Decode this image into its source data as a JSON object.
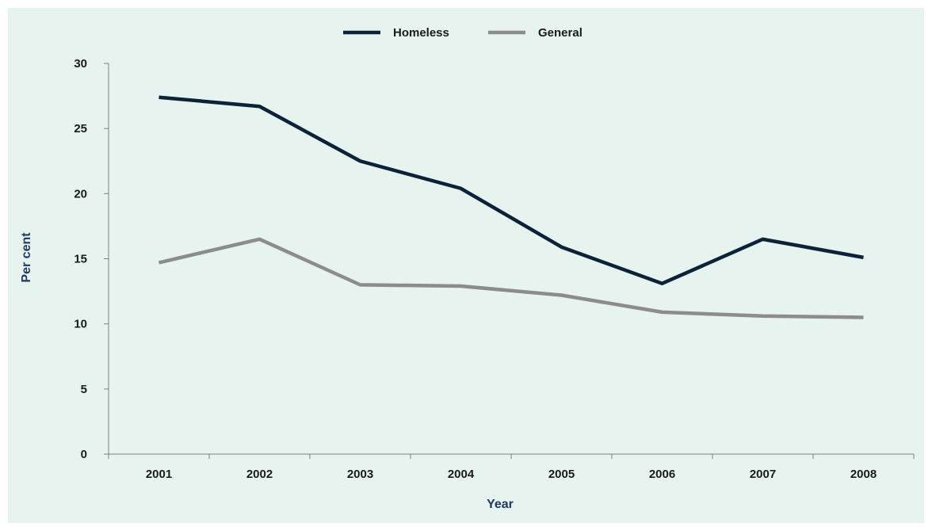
{
  "chart_data": {
    "type": "line",
    "title": "",
    "xlabel": "Year",
    "ylabel": "Per cent",
    "categories": [
      "2001",
      "2002",
      "2003",
      "2004",
      "2005",
      "2006",
      "2007",
      "2008"
    ],
    "ylim": [
      0,
      30
    ],
    "yticks": [
      "0",
      "5",
      "10",
      "15",
      "20",
      "25",
      "30"
    ],
    "grid": false,
    "legend_position": "top-center",
    "series": [
      {
        "name": "Homeless",
        "color": "#0b2239",
        "values": [
          27.4,
          26.7,
          22.5,
          20.4,
          15.9,
          13.1,
          16.5,
          15.1
        ]
      },
      {
        "name": "General",
        "color": "#8c8c8c",
        "values": [
          14.7,
          16.5,
          13.0,
          12.9,
          12.2,
          10.9,
          10.6,
          10.5
        ]
      }
    ]
  }
}
